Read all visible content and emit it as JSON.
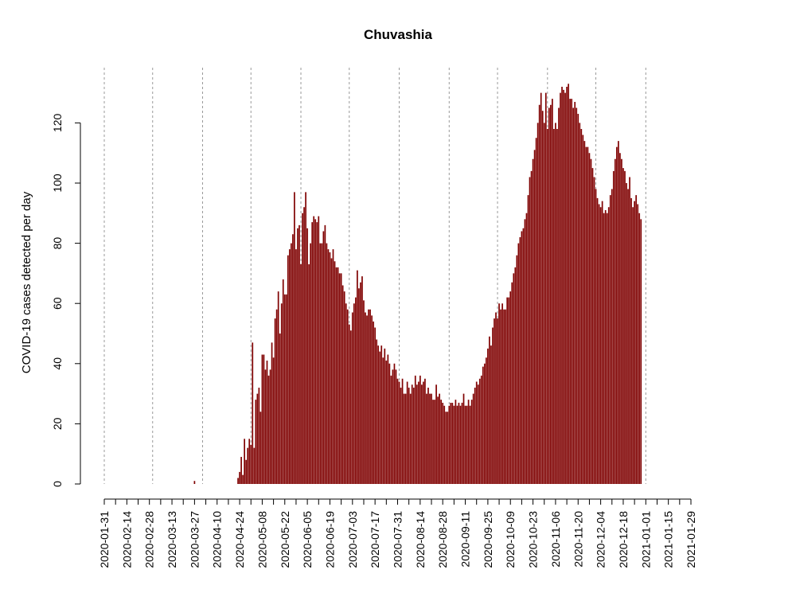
{
  "chart_data": {
    "type": "bar",
    "title": "Chuvashia",
    "xlabel": "",
    "ylabel": "COVID-19 cases detected per day",
    "ylim": [
      0,
      133
    ],
    "yticks": [
      0,
      20,
      40,
      60,
      80,
      100,
      120
    ],
    "xticks": [
      "2020-01-31",
      "2020-02-14",
      "2020-02-28",
      "2020-03-13",
      "2020-03-27",
      "2020-04-10",
      "2020-04-24",
      "2020-05-08",
      "2020-05-22",
      "2020-06-05",
      "2020-06-19",
      "2020-07-03",
      "2020-07-17",
      "2020-07-31",
      "2020-08-14",
      "2020-08-28",
      "2020-09-11",
      "2020-09-25",
      "2020-10-09",
      "2020-10-23",
      "2020-11-06",
      "2020-11-20",
      "2020-12-04",
      "2020-12-18",
      "2021-01-01",
      "2021-01-15",
      "2021-01-29"
    ],
    "grid_lines": [
      "2020-01-31",
      "2020-03-01",
      "2020-04-01",
      "2020-05-01",
      "2020-06-01",
      "2020-07-01",
      "2020-08-01",
      "2020-09-01",
      "2020-10-01",
      "2020-11-01",
      "2020-12-01",
      "2021-01-01"
    ],
    "grid": "dotted vertical lines at month starts",
    "bar_color": "#7f0000",
    "start_date": "2020-01-31",
    "end_date": "2021-01-29",
    "values": [
      0,
      0,
      0,
      0,
      0,
      0,
      0,
      0,
      0,
      0,
      0,
      0,
      0,
      0,
      0,
      0,
      0,
      0,
      0,
      0,
      0,
      0,
      0,
      0,
      0,
      0,
      0,
      0,
      0,
      0,
      0,
      0,
      0,
      0,
      0,
      0,
      0,
      0,
      0,
      0,
      0,
      0,
      0,
      0,
      0,
      0,
      0,
      0,
      0,
      0,
      0,
      0,
      0,
      0,
      0,
      0,
      1,
      0,
      0,
      0,
      0,
      0,
      0,
      0,
      0,
      0,
      0,
      0,
      0,
      0,
      0,
      0,
      0,
      0,
      0,
      0,
      0,
      0,
      0,
      0,
      0,
      0,
      0,
      2,
      4,
      9,
      3,
      15,
      8,
      12,
      15,
      13,
      47,
      12,
      28,
      30,
      32,
      24,
      43,
      43,
      38,
      41,
      36,
      38,
      47,
      42,
      55,
      58,
      64,
      50,
      60,
      68,
      63,
      63,
      76,
      78,
      80,
      83,
      97,
      78,
      85,
      86,
      73,
      90,
      92,
      97,
      85,
      73,
      80,
      87,
      89,
      88,
      87,
      89,
      80,
      80,
      84,
      86,
      80,
      78,
      77,
      75,
      78,
      74,
      72,
      72,
      70,
      70,
      66,
      64,
      60,
      58,
      53,
      51,
      57,
      60,
      62,
      71,
      65,
      67,
      69,
      61,
      57,
      56,
      58,
      58,
      56,
      54,
      52,
      48,
      46,
      44,
      46,
      42,
      45,
      41,
      43,
      40,
      36,
      38,
      40,
      38,
      35,
      34,
      32,
      35,
      30,
      30,
      34,
      32,
      30,
      33,
      32,
      36,
      33,
      34,
      36,
      33,
      34,
      35,
      30,
      32,
      30,
      30,
      28,
      28,
      33,
      29,
      30,
      28,
      27,
      26,
      24,
      24,
      26,
      27,
      27,
      26,
      28,
      26,
      27,
      26,
      27,
      30,
      26,
      26,
      28,
      26,
      28,
      30,
      32,
      34,
      33,
      35,
      36,
      39,
      40,
      42,
      45,
      49,
      46,
      52,
      55,
      57,
      55,
      60,
      58,
      60,
      58,
      58,
      62,
      62,
      64,
      67,
      70,
      72,
      76,
      80,
      82,
      84,
      85,
      88,
      90,
      96,
      102,
      104,
      108,
      111,
      115,
      120,
      126,
      130,
      124,
      120,
      130,
      118,
      125,
      126,
      128,
      118,
      120,
      118,
      125,
      130,
      132,
      131,
      130,
      132,
      133,
      128,
      128,
      125,
      127,
      125,
      123,
      120,
      118,
      116,
      114,
      112,
      112,
      110,
      108,
      105,
      102,
      98,
      95,
      93,
      92,
      94,
      90,
      91,
      90,
      92,
      96,
      98,
      104,
      108,
      112,
      114,
      110,
      108,
      105,
      104,
      100,
      98,
      102,
      95,
      92,
      94,
      96,
      93,
      90,
      88
    ]
  }
}
